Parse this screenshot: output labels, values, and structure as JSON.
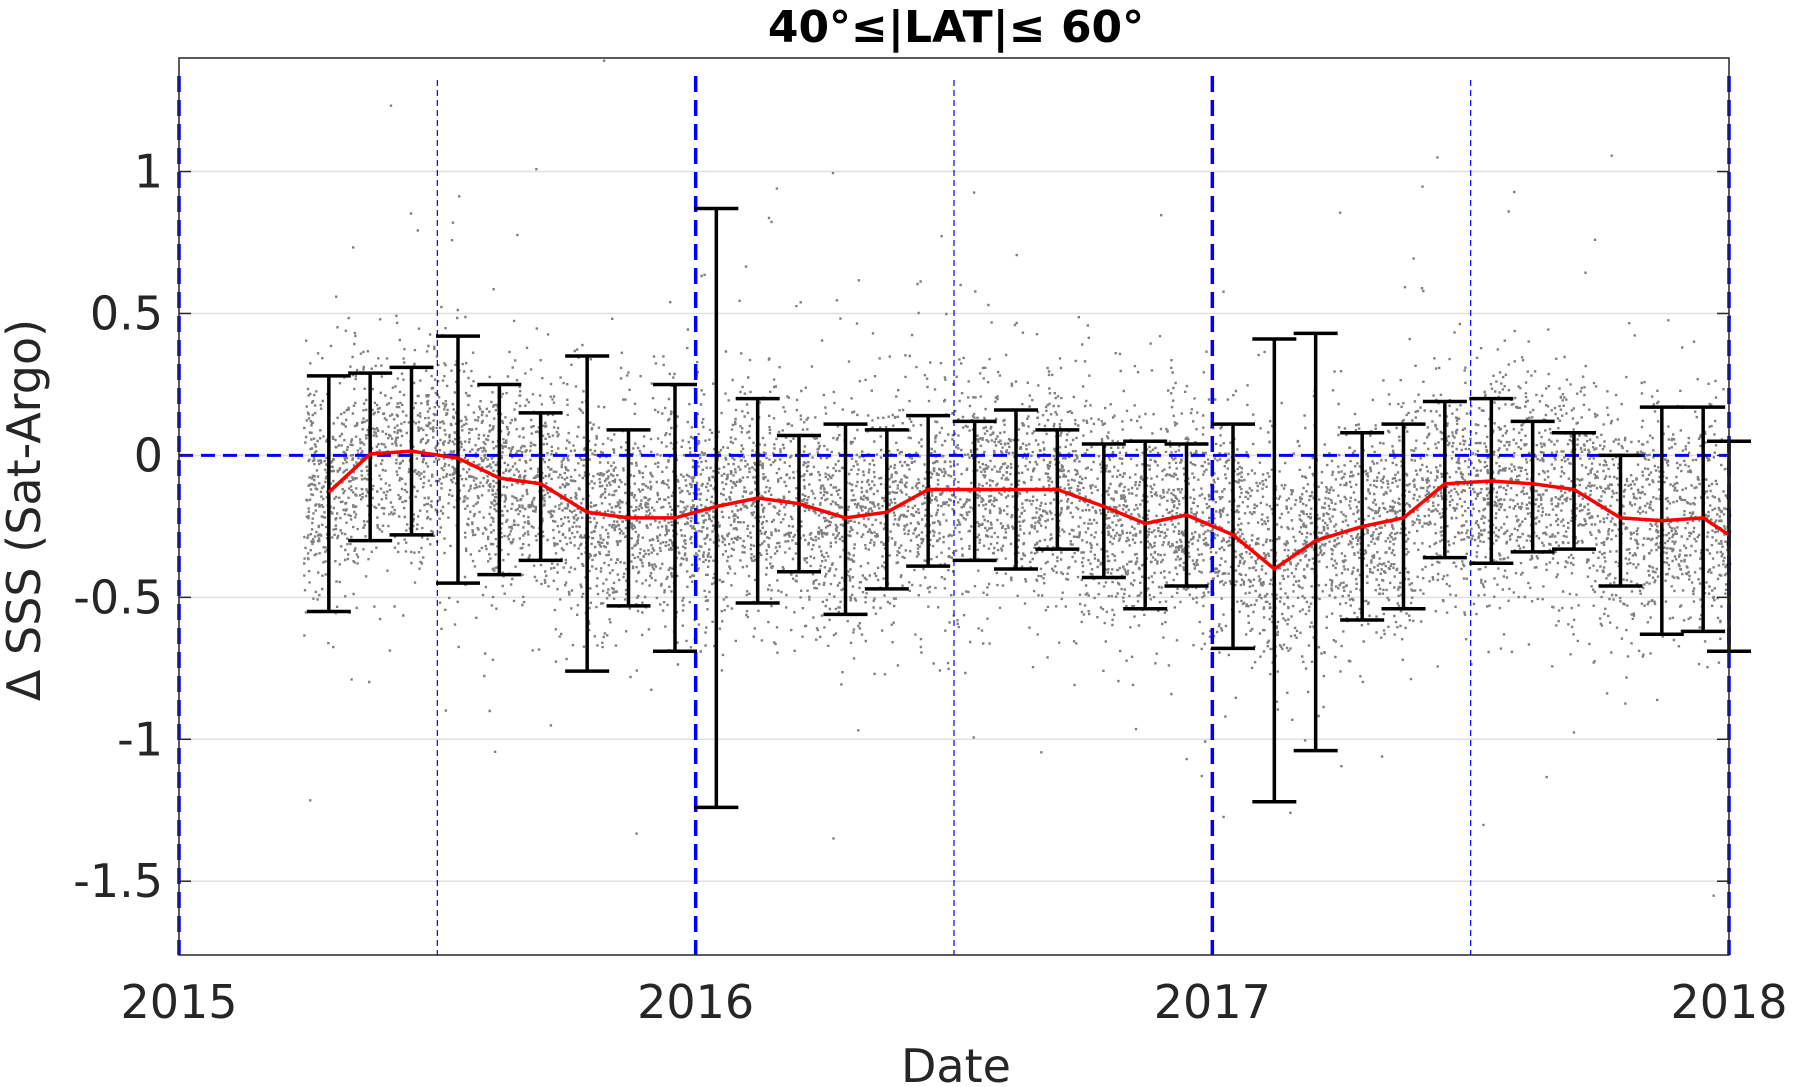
{
  "chart_data": {
    "type": "line",
    "title": "40°≤|LAT|≤ 60°",
    "xlabel": "Date",
    "ylabel": "Δ SSS (Sat-Argo)",
    "xlim": [
      2015.0,
      2018.0
    ],
    "ylim": [
      -1.76,
      1.4
    ],
    "x_ticks": [
      2015,
      2016,
      2017,
      2018
    ],
    "x_tick_labels": [
      "2015",
      "2016",
      "2017",
      "2018"
    ],
    "y_ticks": [
      1,
      0.5,
      0,
      -0.5,
      -1,
      -1.5
    ],
    "y_tick_labels": [
      "1",
      "0.5",
      "0",
      "-0.5",
      "-1",
      "-1.5"
    ],
    "grid": "horizontal",
    "legend": "none",
    "colors": {
      "mean_line": "#ff0000",
      "error_bars": "#000000",
      "scatter": "#808080",
      "reference_lines": "#0000ff",
      "grid": "#e0e0e0",
      "axes": "#262626"
    },
    "reference_lines": {
      "horizontal_zero": 0,
      "year_boundaries": [
        2015.0,
        2016.0,
        2017.0,
        2018.0
      ],
      "mid_year": [
        2015.5,
        2016.5,
        2017.5
      ]
    },
    "scatter_cloud": {
      "x_range": [
        2015.24,
        2018.0
      ],
      "typical_spread_y": [
        -0.6,
        0.4
      ],
      "outlier_spread_y": [
        -1.7,
        1.3
      ]
    },
    "series": [
      {
        "type": "errorbar_line",
        "x": [
          2015.29,
          2015.37,
          2015.45,
          2015.54,
          2015.62,
          2015.7,
          2015.79,
          2015.87,
          2015.96,
          2016.04,
          2016.12,
          2016.2,
          2016.29,
          2016.37,
          2016.45,
          2016.54,
          2016.62,
          2016.7,
          2016.79,
          2016.87,
          2016.95,
          2017.04,
          2017.12,
          2017.2,
          2017.29,
          2017.37,
          2017.45,
          2017.54,
          2017.62,
          2017.7,
          2017.79,
          2017.87,
          2017.95,
          2018.0
        ],
        "mean": [
          -0.13,
          0.005,
          0.015,
          -0.01,
          -0.08,
          -0.1,
          -0.2,
          -0.22,
          -0.22,
          -0.18,
          -0.15,
          -0.17,
          -0.22,
          -0.2,
          -0.12,
          -0.12,
          -0.12,
          -0.12,
          -0.18,
          -0.24,
          -0.21,
          -0.28,
          -0.4,
          -0.3,
          -0.25,
          -0.22,
          -0.1,
          -0.09,
          -0.1,
          -0.12,
          -0.22,
          -0.23,
          -0.22,
          -0.28
        ],
        "upper": [
          0.28,
          0.29,
          0.31,
          0.42,
          0.25,
          0.15,
          0.35,
          0.09,
          0.25,
          0.87,
          0.2,
          0.07,
          0.11,
          0.09,
          0.14,
          0.12,
          0.16,
          0.09,
          0.04,
          0.05,
          0.04,
          0.11,
          0.41,
          0.43,
          0.08,
          0.11,
          0.19,
          0.2,
          0.12,
          0.08,
          0.0,
          0.17,
          0.17,
          0.05
        ],
        "lower": [
          -0.55,
          -0.3,
          -0.28,
          -0.45,
          -0.42,
          -0.37,
          -0.76,
          -0.53,
          -0.69,
          -1.24,
          -0.52,
          -0.41,
          -0.56,
          -0.47,
          -0.39,
          -0.37,
          -0.4,
          -0.33,
          -0.43,
          -0.54,
          -0.46,
          -0.68,
          -1.22,
          -1.04,
          -0.58,
          -0.54,
          -0.36,
          -0.38,
          -0.34,
          -0.33,
          -0.46,
          -0.63,
          -0.62,
          -0.69
        ]
      }
    ]
  }
}
